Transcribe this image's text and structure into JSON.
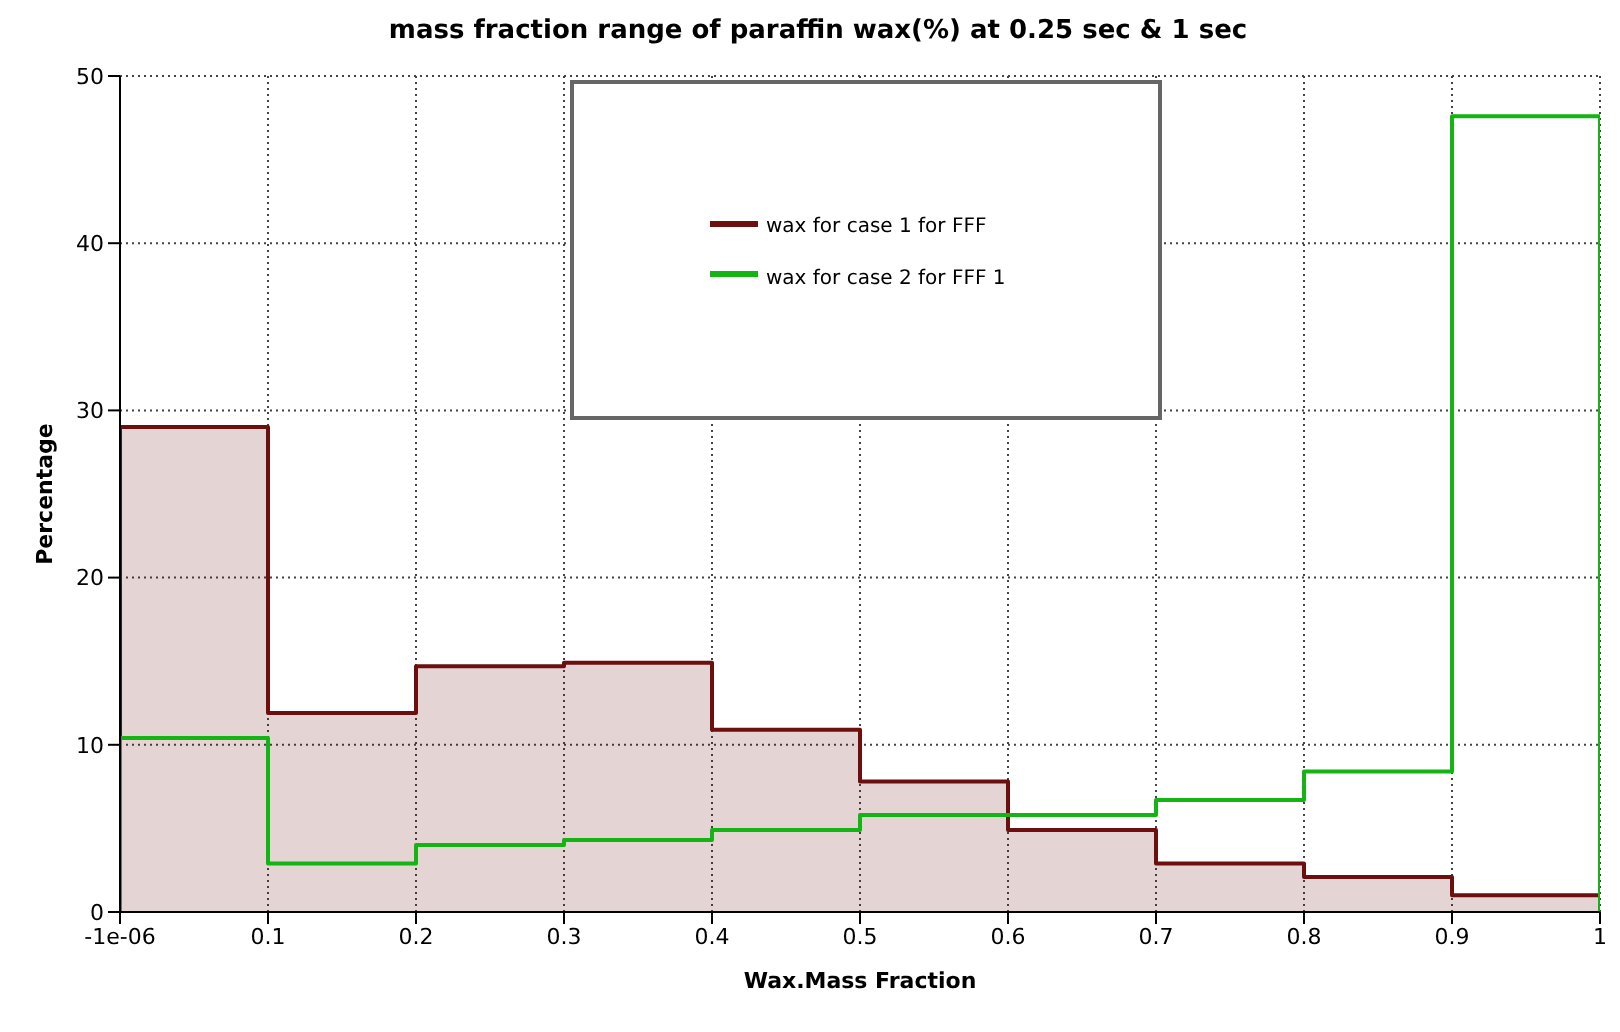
{
  "chart_data": {
    "type": "histogram",
    "title": "mass fraction range of paraffin wax(%) at 0.25 sec & 1 sec",
    "xlabel": "Wax.Mass Fraction",
    "ylabel": "Percentage",
    "bins": [
      -1e-06,
      0.1,
      0.2,
      0.3,
      0.4,
      0.5,
      0.6,
      0.7,
      0.8,
      0.9,
      1
    ],
    "series": [
      {
        "name": "wax for case 1 for FFF",
        "color": "#6b0f0f",
        "values": [
          29.0,
          11.9,
          14.7,
          14.9,
          10.9,
          7.8,
          4.9,
          2.9,
          2.1,
          1.0
        ]
      },
      {
        "name": "wax for case 2 for FFF 1",
        "color": "#14b414",
        "values": [
          10.4,
          2.9,
          4.0,
          4.3,
          4.9,
          5.8,
          5.8,
          6.7,
          8.4,
          47.6
        ]
      }
    ],
    "xlim": [
      -1e-06,
      1
    ],
    "xticks": [
      {
        "value": -1e-06,
        "label": "-1e-06"
      },
      0.1,
      0.2,
      0.3,
      0.4,
      0.5,
      0.6,
      0.7,
      0.8,
      0.9,
      1
    ],
    "ylim": [
      0,
      50
    ],
    "yticks": [
      0,
      10,
      20,
      30,
      40,
      50
    ],
    "grid": true,
    "legend": "top"
  }
}
